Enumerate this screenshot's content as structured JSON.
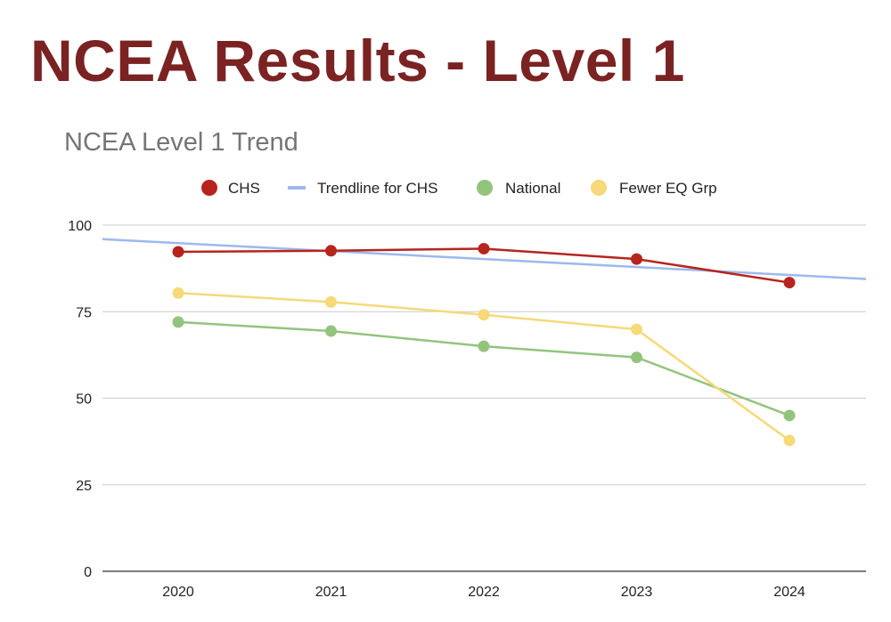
{
  "slide": {
    "title": "NCEA Results - Level 1"
  },
  "chart_data": {
    "type": "line",
    "title": "NCEA Level 1 Trend",
    "xlabel": "",
    "ylabel": "",
    "categories": [
      "2020",
      "2021",
      "2022",
      "2023",
      "2024"
    ],
    "ylim": [
      0,
      100
    ],
    "yticks": [
      0,
      25,
      50,
      75,
      100
    ],
    "grid": true,
    "legend_position": "top",
    "series": [
      {
        "name": "CHS",
        "values": [
          92.3,
          92.6,
          93.2,
          90.2,
          83.4
        ],
        "color": "#b5251d",
        "markers": true
      },
      {
        "name": "Trendline for CHS",
        "values": [
          94.8,
          92.5,
          90.2,
          87.9,
          85.6
        ],
        "color": "#9db8ef",
        "markers": false,
        "trendline": true
      },
      {
        "name": "National",
        "values": [
          72.0,
          69.4,
          65.0,
          61.8,
          45.0
        ],
        "color": "#93c47d",
        "markers": true
      },
      {
        "name": "Fewer EQ Grp",
        "values": [
          80.4,
          77.8,
          74.1,
          69.9,
          37.8
        ],
        "color": "#f6d978",
        "markers": true
      }
    ]
  }
}
